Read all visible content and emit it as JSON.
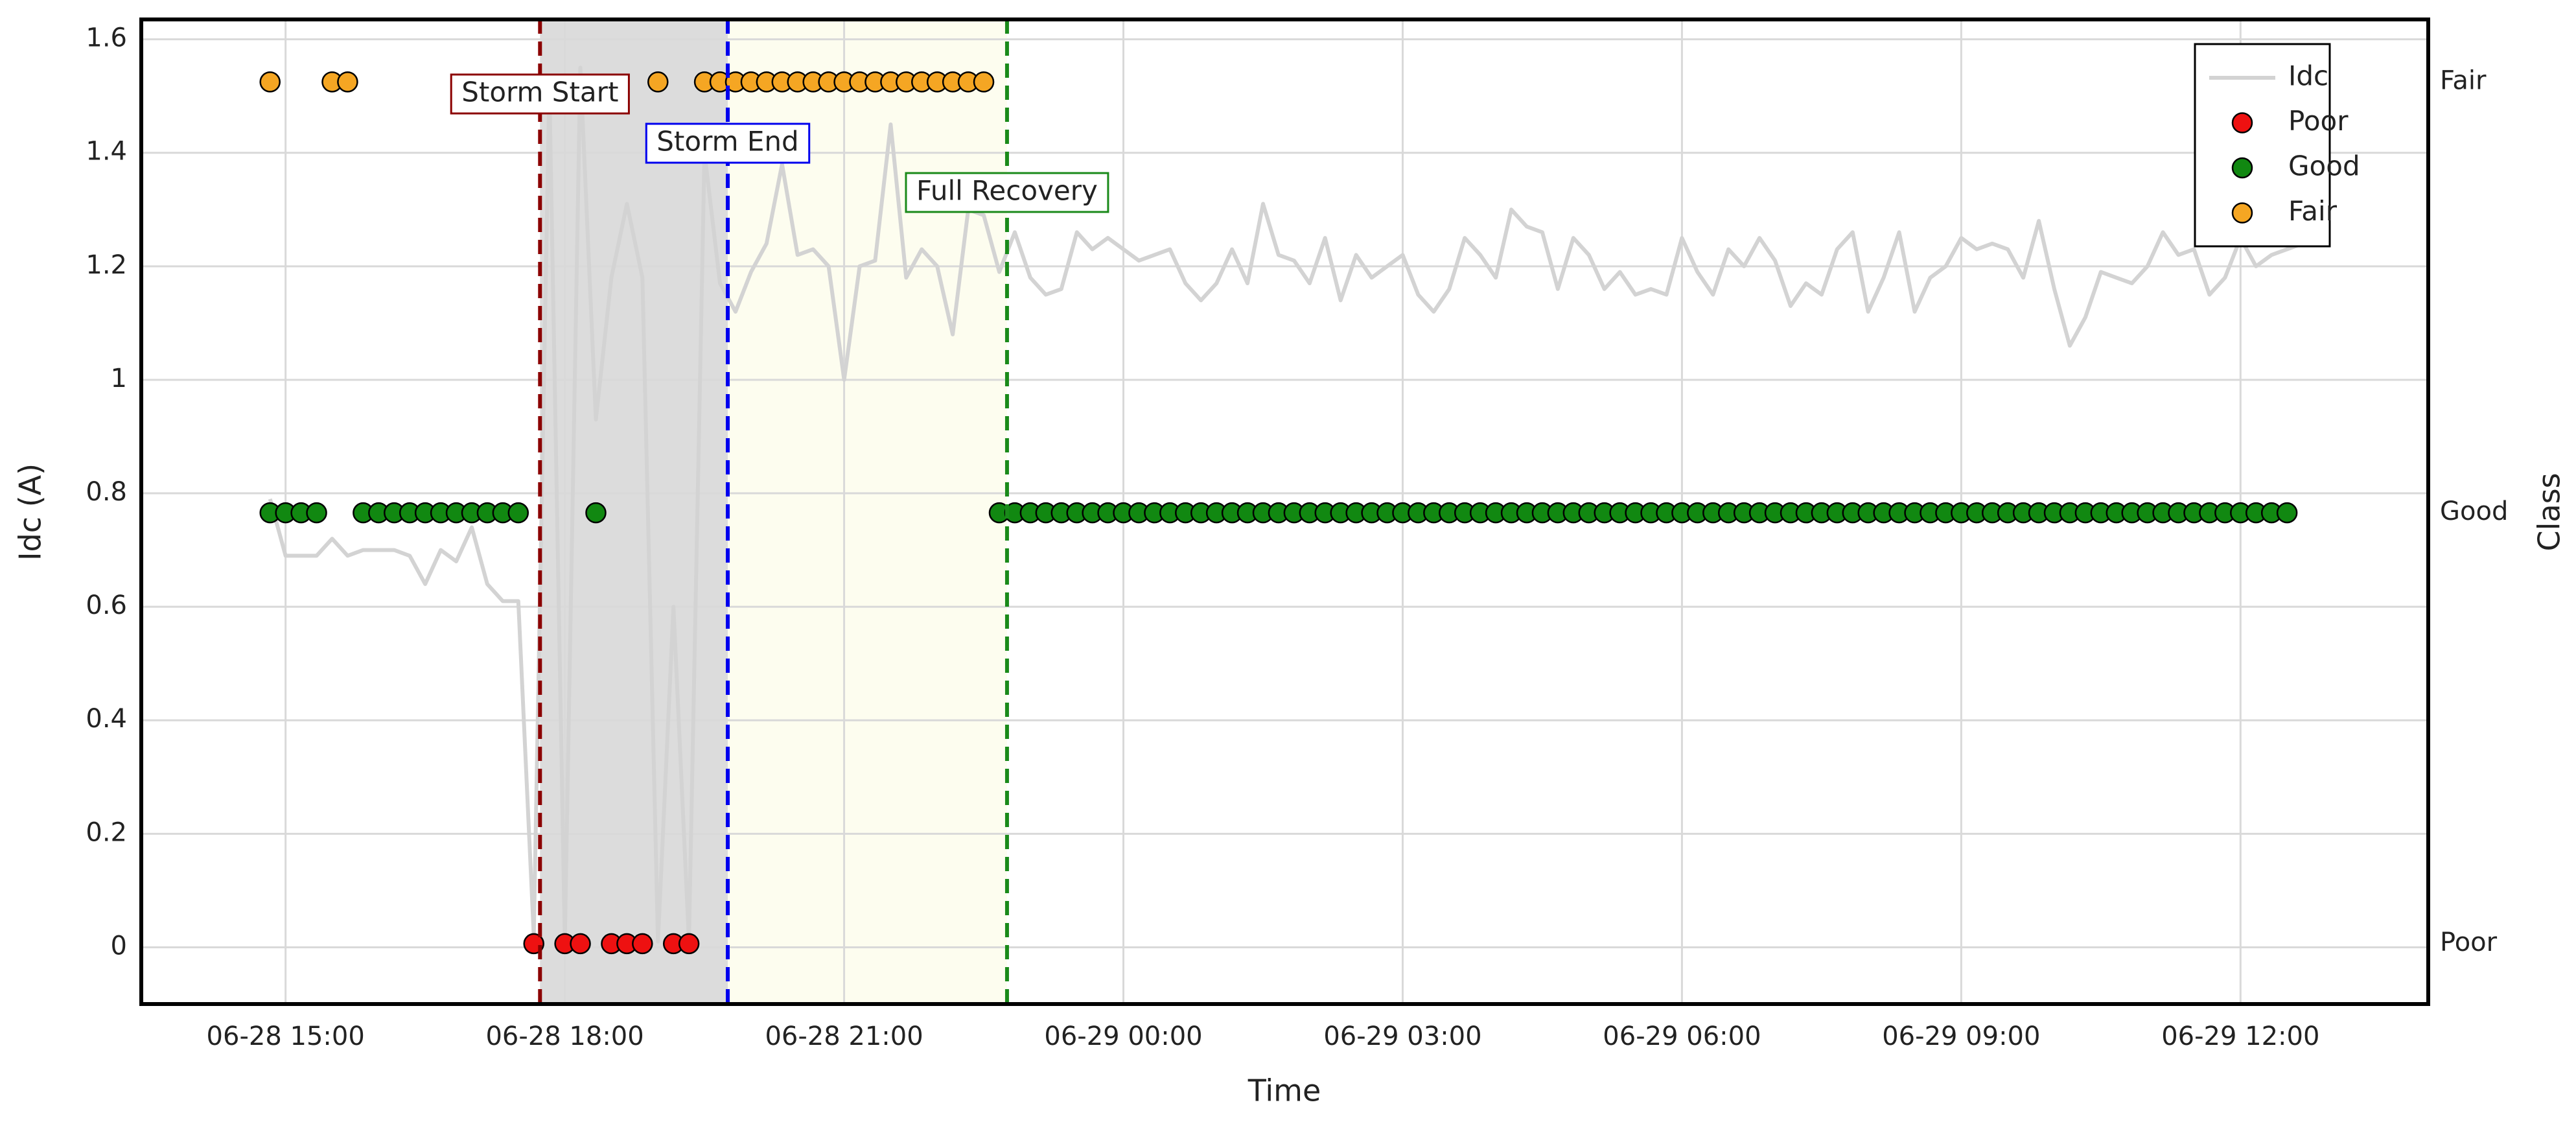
{
  "chart_data": {
    "type": "line",
    "xlabel": "Time",
    "ylabel": "Idc (A)",
    "y2label": "Class",
    "xlim": [
      "06-28 13:27",
      "06-29 14:01"
    ],
    "xticks": [
      "06-28 15:00",
      "06-28 18:00",
      "06-28 21:00",
      "06-29 00:00",
      "06-29 03:00",
      "06-29 06:00",
      "06-29 09:00",
      "06-29 12:00"
    ],
    "ylim": [
      -0.1,
      1.635
    ],
    "yticks": [
      0,
      0.2,
      0.4,
      0.6,
      0.8,
      1,
      1.2,
      1.4,
      1.6
    ],
    "y2lim": [
      -0.14,
      2.145
    ],
    "y2ticks": [
      {
        "value": 0,
        "label": "Poor"
      },
      {
        "value": 1,
        "label": "Good"
      },
      {
        "value": 2,
        "label": "Fair"
      }
    ],
    "grid": true,
    "legend": "upper right",
    "shaded": [
      {
        "x": [
          "06-28 17:44",
          "06-28 19:45"
        ],
        "color": "#dcdcdc"
      },
      {
        "x": [
          "06-28 19:45",
          "06-28 22:45"
        ],
        "color": "#fdfdef"
      }
    ],
    "annotations": [
      {
        "text": "Storm Start",
        "x": "06-28 17:44",
        "color": "#8b0000"
      },
      {
        "text": "Storm End",
        "x": "06-28 19:45",
        "color": "#0000ee"
      },
      {
        "text": "Full Recovery",
        "x": "06-28 22:45",
        "color": "#1a8a1a"
      }
    ],
    "series": [
      {
        "name": "Idc",
        "type": "line",
        "color": "#d3d3d3",
        "x": [
          "06-28 14:50",
          "06-28 15:00",
          "06-28 15:10",
          "06-28 15:20",
          "06-28 15:30",
          "06-28 15:40",
          "06-28 15:50",
          "06-28 16:00",
          "06-28 16:10",
          "06-28 16:20",
          "06-28 16:30",
          "06-28 16:40",
          "06-28 16:50",
          "06-28 17:00",
          "06-28 17:10",
          "06-28 17:20",
          "06-28 17:30",
          "06-28 17:40",
          "06-28 17:50",
          "06-28 18:00",
          "06-28 18:10",
          "06-28 18:20",
          "06-28 18:30",
          "06-28 18:40",
          "06-28 18:50",
          "06-28 19:00",
          "06-28 19:10",
          "06-28 19:20",
          "06-28 19:30",
          "06-28 19:40",
          "06-28 19:50",
          "06-28 20:00",
          "06-28 20:10",
          "06-28 20:20",
          "06-28 20:30",
          "06-28 20:40",
          "06-28 20:50",
          "06-28 21:00",
          "06-28 21:10",
          "06-28 21:20",
          "06-28 21:30",
          "06-28 21:40",
          "06-28 21:50",
          "06-28 22:00",
          "06-28 22:10",
          "06-28 22:20",
          "06-28 22:30",
          "06-28 22:40",
          "06-28 22:50",
          "06-28 23:00",
          "06-28 23:10",
          "06-28 23:20",
          "06-28 23:30",
          "06-28 23:40",
          "06-28 23:50",
          "06-29 00:00",
          "06-29 00:10",
          "06-29 00:20",
          "06-29 00:30",
          "06-29 00:40",
          "06-29 00:50",
          "06-29 01:00",
          "06-29 01:10",
          "06-29 01:20",
          "06-29 01:30",
          "06-29 01:40",
          "06-29 01:50",
          "06-29 02:00",
          "06-29 02:10",
          "06-29 02:20",
          "06-29 02:30",
          "06-29 02:40",
          "06-29 02:50",
          "06-29 03:00",
          "06-29 03:10",
          "06-29 03:20",
          "06-29 03:30",
          "06-29 03:40",
          "06-29 03:50",
          "06-29 04:00",
          "06-29 04:10",
          "06-29 04:20",
          "06-29 04:30",
          "06-29 04:40",
          "06-29 04:50",
          "06-29 05:00",
          "06-29 05:10",
          "06-29 05:20",
          "06-29 05:30",
          "06-29 05:40",
          "06-29 05:50",
          "06-29 06:00",
          "06-29 06:10",
          "06-29 06:20",
          "06-29 06:30",
          "06-29 06:40",
          "06-29 06:50",
          "06-29 07:00",
          "06-29 07:10",
          "06-29 07:20",
          "06-29 07:30",
          "06-29 07:40",
          "06-29 07:50",
          "06-29 08:00",
          "06-29 08:10",
          "06-29 08:20",
          "06-29 08:30",
          "06-29 08:40",
          "06-29 08:50",
          "06-29 09:00",
          "06-29 09:10",
          "06-29 09:20",
          "06-29 09:30",
          "06-29 09:40",
          "06-29 09:50",
          "06-29 10:00",
          "06-29 10:10",
          "06-29 10:20",
          "06-29 10:30",
          "06-29 10:40",
          "06-29 10:50",
          "06-29 11:00",
          "06-29 11:10",
          "06-29 11:20",
          "06-29 11:30",
          "06-29 11:40",
          "06-29 11:50",
          "06-29 12:00",
          "06-29 12:10",
          "06-29 12:20",
          "06-29 12:30",
          "06-29 12:40"
        ],
        "values": [
          0.79,
          0.69,
          0.69,
          0.69,
          0.72,
          0.69,
          0.7,
          0.7,
          0.7,
          0.69,
          0.64,
          0.7,
          0.68,
          0.74,
          0.64,
          0.61,
          0.61,
          0.02,
          1.52,
          0.01,
          1.55,
          0.93,
          1.18,
          1.31,
          1.18,
          0.01,
          0.6,
          0.01,
          1.4,
          1.17,
          1.12,
          1.19,
          1.24,
          1.38,
          1.22,
          1.23,
          1.2,
          1.0,
          1.2,
          1.21,
          1.45,
          1.18,
          1.23,
          1.2,
          1.08,
          1.3,
          1.29,
          1.19,
          1.26,
          1.18,
          1.15,
          1.16,
          1.26,
          1.23,
          1.25,
          1.23,
          1.21,
          1.22,
          1.23,
          1.17,
          1.14,
          1.17,
          1.23,
          1.17,
          1.31,
          1.22,
          1.21,
          1.17,
          1.25,
          1.14,
          1.22,
          1.18,
          1.2,
          1.22,
          1.15,
          1.12,
          1.16,
          1.25,
          1.22,
          1.18,
          1.3,
          1.27,
          1.26,
          1.16,
          1.25,
          1.22,
          1.16,
          1.19,
          1.15,
          1.16,
          1.15,
          1.25,
          1.19,
          1.15,
          1.23,
          1.2,
          1.25,
          1.21,
          1.13,
          1.17,
          1.15,
          1.23,
          1.26,
          1.12,
          1.18,
          1.26,
          1.12,
          1.18,
          1.2,
          1.25,
          1.23,
          1.24,
          1.23,
          1.18,
          1.28,
          1.16,
          1.06,
          1.11,
          1.19,
          1.18,
          1.17,
          1.2,
          1.26,
          1.22,
          1.23,
          1.15,
          1.18,
          1.25,
          1.2,
          1.22,
          1.23,
          1.24
        ]
      },
      {
        "name": "Poor",
        "type": "scatter",
        "axis": "y2",
        "color": "#ee1111",
        "x": [
          "06-28 17:40",
          "06-28 18:00",
          "06-28 18:10",
          "06-28 18:30",
          "06-28 18:40",
          "06-28 18:50",
          "06-28 19:10",
          "06-28 19:20"
        ],
        "values": [
          0,
          0,
          0,
          0,
          0,
          0,
          0,
          0
        ]
      },
      {
        "name": "Good",
        "type": "scatter",
        "axis": "y2",
        "color": "#118811",
        "x": [
          "06-28 14:50",
          "06-28 15:00",
          "06-28 15:10",
          "06-28 15:20",
          "06-28 15:50",
          "06-28 16:00",
          "06-28 16:10",
          "06-28 16:20",
          "06-28 16:30",
          "06-28 16:40",
          "06-28 16:50",
          "06-28 17:00",
          "06-28 17:10",
          "06-28 17:20",
          "06-28 17:30",
          "06-28 18:20",
          "06-28 22:40",
          "06-28 22:50",
          "06-28 23:00",
          "06-28 23:10",
          "06-28 23:20",
          "06-28 23:30",
          "06-28 23:40",
          "06-28 23:50",
          "06-29 00:00",
          "06-29 00:10",
          "06-29 00:20",
          "06-29 00:30",
          "06-29 00:40",
          "06-29 00:50",
          "06-29 01:00",
          "06-29 01:10",
          "06-29 01:20",
          "06-29 01:30",
          "06-29 01:40",
          "06-29 01:50",
          "06-29 02:00",
          "06-29 02:10",
          "06-29 02:20",
          "06-29 02:30",
          "06-29 02:40",
          "06-29 02:50",
          "06-29 03:00",
          "06-29 03:10",
          "06-29 03:20",
          "06-29 03:30",
          "06-29 03:40",
          "06-29 03:50",
          "06-29 04:00",
          "06-29 04:10",
          "06-29 04:20",
          "06-29 04:30",
          "06-29 04:40",
          "06-29 04:50",
          "06-29 05:00",
          "06-29 05:10",
          "06-29 05:20",
          "06-29 05:30",
          "06-29 05:40",
          "06-29 05:50",
          "06-29 06:00",
          "06-29 06:10",
          "06-29 06:20",
          "06-29 06:30",
          "06-29 06:40",
          "06-29 06:50",
          "06-29 07:00",
          "06-29 07:10",
          "06-29 07:20",
          "06-29 07:30",
          "06-29 07:40",
          "06-29 07:50",
          "06-29 08:00",
          "06-29 08:10",
          "06-29 08:20",
          "06-29 08:30",
          "06-29 08:40",
          "06-29 08:50",
          "06-29 09:00",
          "06-29 09:10",
          "06-29 09:20",
          "06-29 09:30",
          "06-29 09:40",
          "06-29 09:50",
          "06-29 10:00",
          "06-29 10:10",
          "06-29 10:20",
          "06-29 10:30",
          "06-29 10:40",
          "06-29 10:50",
          "06-29 11:00",
          "06-29 11:10",
          "06-29 11:20",
          "06-29 11:30",
          "06-29 11:40",
          "06-29 11:50",
          "06-29 12:00",
          "06-29 12:10",
          "06-29 12:20",
          "06-29 12:30"
        ],
        "values": [
          1,
          1,
          1,
          1,
          1,
          1,
          1,
          1,
          1,
          1,
          1,
          1,
          1,
          1,
          1,
          1,
          1,
          1,
          1,
          1,
          1,
          1,
          1,
          1,
          1,
          1,
          1,
          1,
          1,
          1,
          1,
          1,
          1,
          1,
          1,
          1,
          1,
          1,
          1,
          1,
          1,
          1,
          1,
          1,
          1,
          1,
          1,
          1,
          1,
          1,
          1,
          1,
          1,
          1,
          1,
          1,
          1,
          1,
          1,
          1,
          1,
          1,
          1,
          1,
          1,
          1,
          1,
          1,
          1,
          1,
          1,
          1,
          1,
          1,
          1,
          1,
          1,
          1,
          1,
          1,
          1,
          1,
          1,
          1,
          1,
          1,
          1,
          1,
          1,
          1,
          1,
          1,
          1,
          1,
          1,
          1,
          1,
          1,
          1,
          1
        ]
      },
      {
        "name": "Fair",
        "type": "scatter",
        "axis": "y2",
        "color": "#f5a623",
        "x": [
          "06-28 14:50",
          "06-28 15:30",
          "06-28 15:40",
          "06-28 19:00",
          "06-28 19:30",
          "06-28 19:40",
          "06-28 19:50",
          "06-28 20:00",
          "06-28 20:10",
          "06-28 20:20",
          "06-28 20:30",
          "06-28 20:40",
          "06-28 20:50",
          "06-28 21:00",
          "06-28 21:10",
          "06-28 21:20",
          "06-28 21:30",
          "06-28 21:40",
          "06-28 21:50",
          "06-28 22:00",
          "06-28 22:10",
          "06-28 22:20",
          "06-28 22:30"
        ],
        "values": [
          2,
          2,
          2,
          2,
          2,
          2,
          2,
          2,
          2,
          2,
          2,
          2,
          2,
          2,
          2,
          2,
          2,
          2,
          2,
          2,
          2,
          2,
          2
        ]
      }
    ]
  }
}
